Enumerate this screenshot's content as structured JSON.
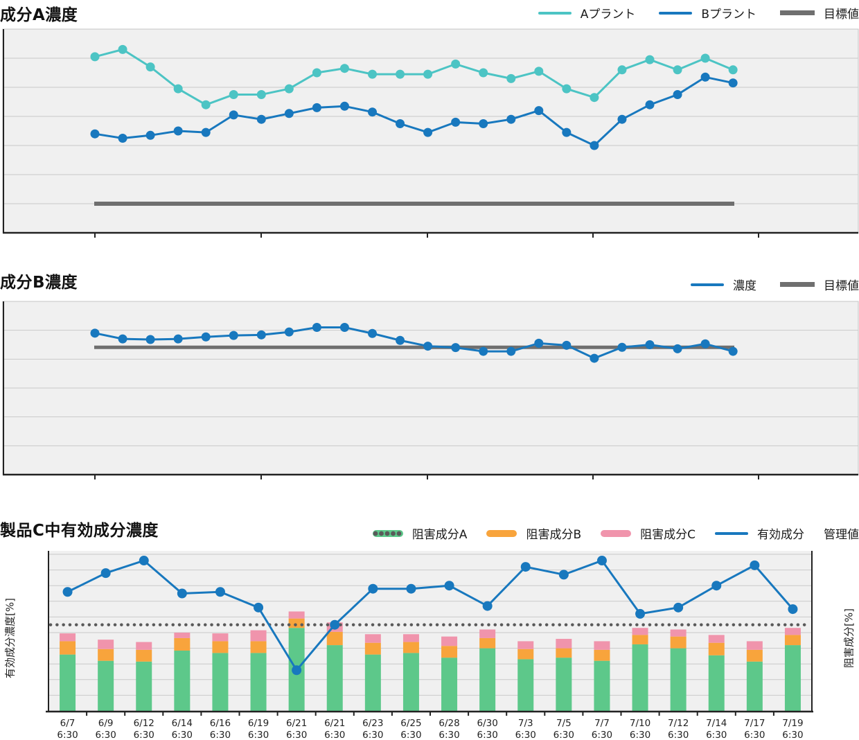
{
  "style": {
    "plot_bg": "#f0f0f0",
    "grid": "#c9c9c9",
    "frame": "#c4c4c4",
    "axis": "#222222",
    "tick_label_color": "#222222",
    "accent_teal": "#4cc4c4",
    "accent_blue": "#1878be",
    "target_gray": "#6f6f6f",
    "bar_green": "#5dc88a",
    "bar_orange": "#f8a43c",
    "bar_pink": "#f094ac",
    "dotted_gray": "#5a5a5a"
  },
  "chart_data": [
    {
      "type": "line",
      "title": "成分A濃度",
      "x_points": 24,
      "x_tick_labels": [],
      "y_tick_labels": [],
      "ylim": [
        0,
        7
      ],
      "grid": true,
      "legend_position": "top-right",
      "note": "axes have no numeric labels; values estimated in gridline units (7 horizontal bands)",
      "series": [
        {
          "name": "Aプラント",
          "color": "#4cc4c4",
          "values": [
            6.05,
            6.3,
            5.7,
            4.95,
            4.4,
            4.75,
            4.75,
            4.95,
            5.5,
            5.65,
            5.45,
            5.45,
            5.45,
            5.8,
            5.5,
            5.3,
            5.55,
            4.95,
            4.65,
            5.6,
            5.95,
            5.6,
            6.0,
            5.6
          ]
        },
        {
          "name": "Bプラント",
          "color": "#1878be",
          "values": [
            3.4,
            3.25,
            3.35,
            3.5,
            3.45,
            4.05,
            3.9,
            4.1,
            4.3,
            4.35,
            4.15,
            3.75,
            3.45,
            3.8,
            3.75,
            3.9,
            4.2,
            3.45,
            3.0,
            3.9,
            4.4,
            4.75,
            5.35,
            5.15
          ]
        }
      ],
      "target": {
        "name": "目標値",
        "value": 1.0,
        "color": "#6f6f6f"
      }
    },
    {
      "type": "line",
      "title": "成分B濃度",
      "x_points": 24,
      "x_tick_labels": [],
      "y_tick_labels": [],
      "ylim": [
        0,
        6
      ],
      "grid": true,
      "legend_position": "top-right",
      "note": "axes have no numeric labels; values estimated in gridline units (6 horizontal bands)",
      "series": [
        {
          "name": "濃度",
          "color": "#1878be",
          "values": [
            4.9,
            4.7,
            4.68,
            4.7,
            4.77,
            4.82,
            4.84,
            4.94,
            5.1,
            5.1,
            4.89,
            4.65,
            4.45,
            4.4,
            4.27,
            4.27,
            4.55,
            4.48,
            4.03,
            4.41,
            4.5,
            4.36,
            4.53,
            4.27
          ]
        }
      ],
      "target": {
        "name": "目標値",
        "value": 4.41,
        "color": "#6f6f6f"
      }
    },
    {
      "type": "stacked-bar+line",
      "title": "製品C中有効成分濃度",
      "categories": [
        "6/7",
        "6/9",
        "6/12",
        "6/14",
        "6/16",
        "6/19",
        "6/21",
        "6/21",
        "6/23",
        "6/25",
        "6/28",
        "6/30",
        "7/3",
        "7/5",
        "7/7",
        "7/10",
        "7/12",
        "7/14",
        "7/17",
        "7/19"
      ],
      "category_time": "6:30",
      "ylabel_left": "有効成分濃度[%]",
      "ylabel_right": "阻害成分[%]",
      "ylim": [
        0,
        100
      ],
      "grid": true,
      "legend_position": "top",
      "bar_series": [
        {
          "name": "阻害成分A",
          "color": "#5dc88a",
          "values": [
            36,
            32,
            31.5,
            38.5,
            37,
            37,
            53,
            42,
            36,
            37,
            34,
            40,
            33,
            34,
            32,
            42.5,
            40,
            35.5,
            31.5,
            42
          ]
        },
        {
          "name": "阻害成分B",
          "color": "#f8a43c",
          "values": [
            8.5,
            7.5,
            7.5,
            8,
            7.5,
            7.5,
            6,
            8.5,
            7.5,
            7,
            7.5,
            6.5,
            6.5,
            6,
            7,
            6,
            7.5,
            8,
            7.5,
            6.5
          ]
        },
        {
          "name": "阻害成分C",
          "color": "#f094ac",
          "values": [
            5,
            6,
            5,
            3.5,
            5,
            7,
            4.5,
            6,
            5.5,
            5,
            6,
            5.5,
            5,
            6,
            5.5,
            4.5,
            4.5,
            5,
            5.5,
            4.5
          ]
        }
      ],
      "line_series": {
        "name": "有効成分",
        "color": "#1878be",
        "values": [
          76,
          88,
          96,
          75,
          76,
          66,
          26,
          55,
          78,
          78,
          80,
          67,
          92,
          87,
          96,
          62,
          66,
          80,
          93,
          65
        ]
      },
      "control_limit": {
        "name": "管理値",
        "value": 55,
        "style": "dotted",
        "color": "#5a5a5a"
      }
    }
  ]
}
